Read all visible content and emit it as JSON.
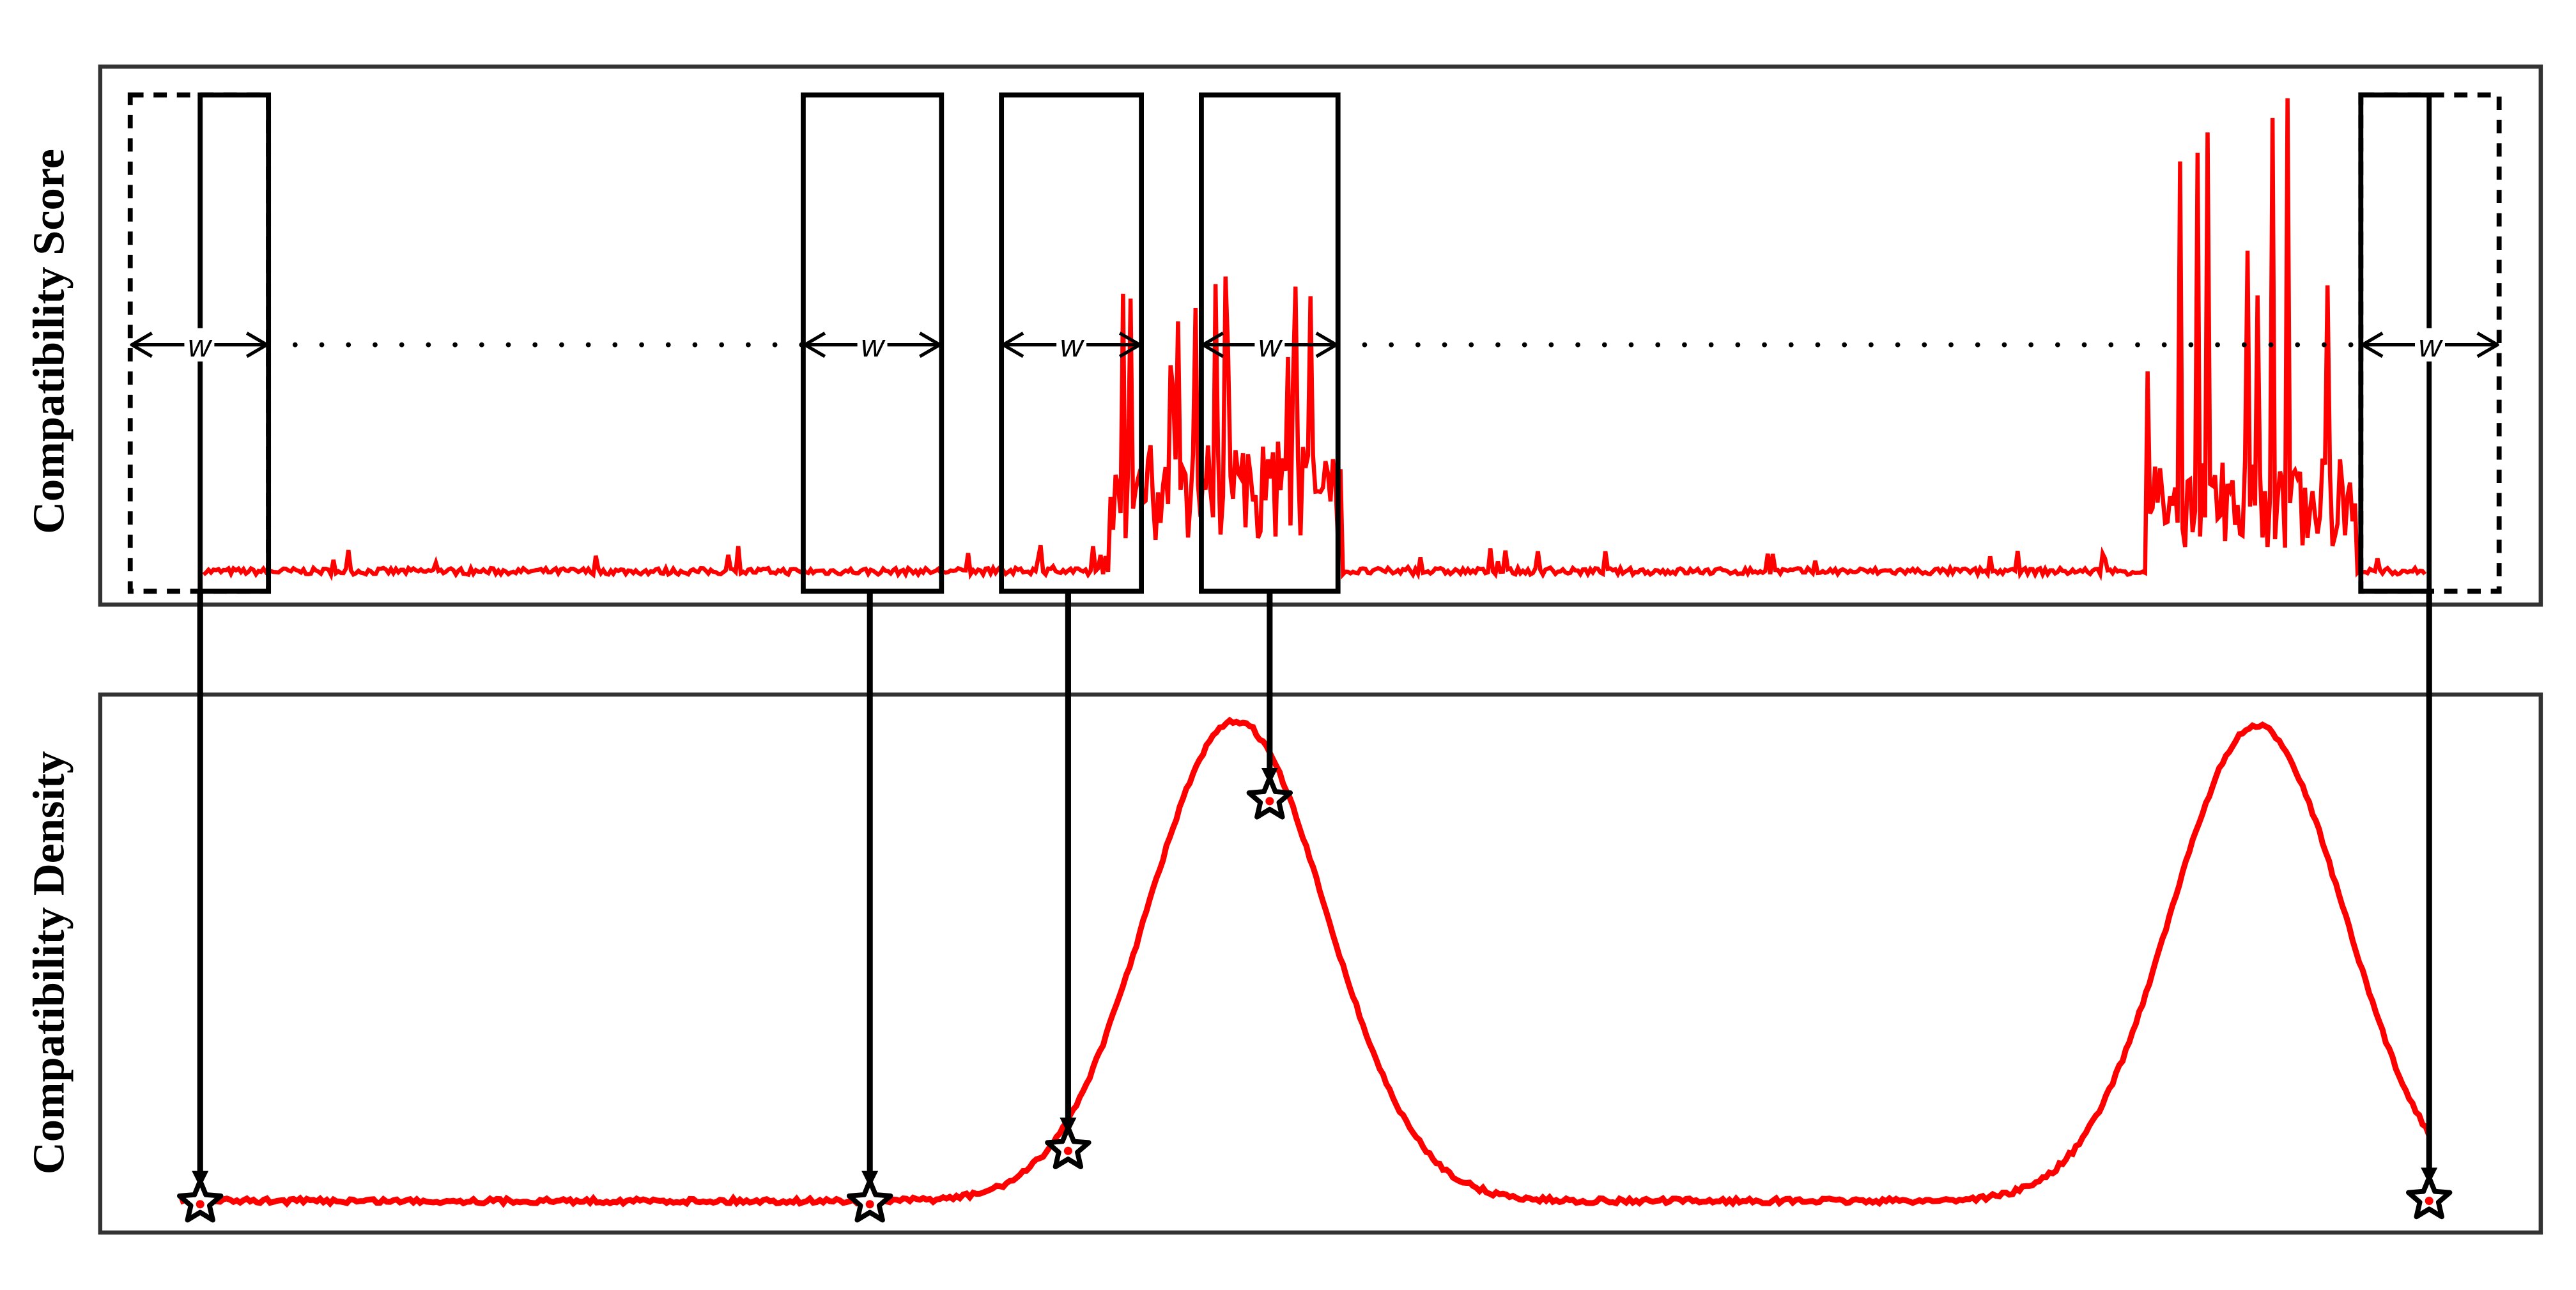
{
  "panels": [
    {
      "label": "Compatibility Score"
    },
    {
      "label": "Compatibility Density"
    }
  ],
  "windows": [
    {
      "label": "w"
    },
    {
      "label": "w"
    },
    {
      "label": "w"
    },
    {
      "label": "w"
    },
    {
      "label": "w"
    }
  ]
}
